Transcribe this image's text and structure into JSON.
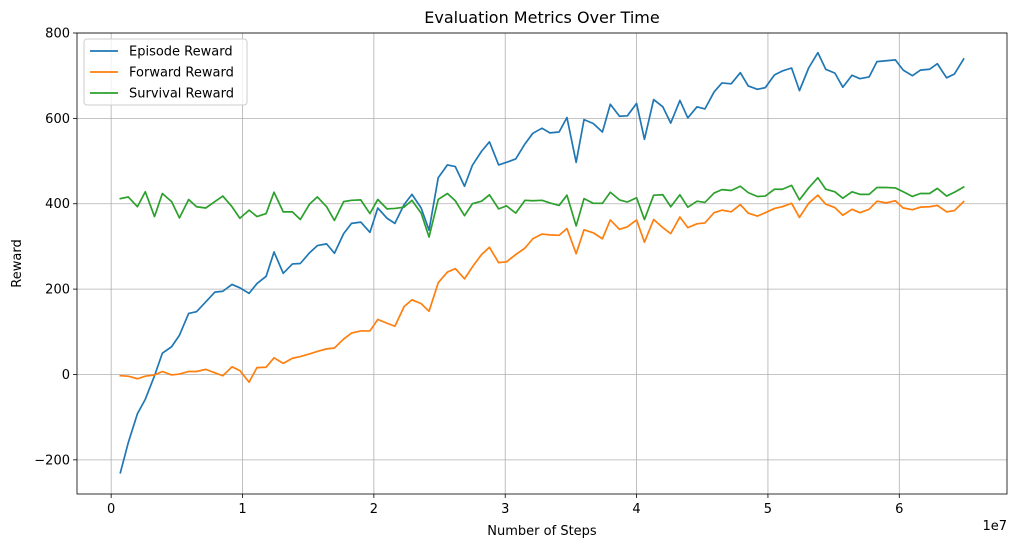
{
  "chart_data": {
    "type": "line",
    "title": "Evaluation Metrics Over Time",
    "xlabel": "Number of Steps",
    "ylabel": "Reward",
    "x_offset_label": "1e7",
    "x_scale": 10000000,
    "xlim": [
      -0.26,
      6.82
    ],
    "ylim": [
      -280,
      800
    ],
    "x_ticks": [
      0,
      1,
      2,
      3,
      4,
      5,
      6
    ],
    "y_ticks": [
      -200,
      0,
      200,
      400,
      600,
      800
    ],
    "x_tick_labels": [
      "0",
      "1",
      "2",
      "3",
      "4",
      "5",
      "6"
    ],
    "y_tick_labels": [
      "−200",
      "0",
      "200",
      "400",
      "600",
      "800"
    ],
    "grid": true,
    "legend_position": "top-left",
    "x": [
      0.07,
      0.13,
      0.2,
      0.26,
      0.33,
      0.39,
      0.46,
      0.52,
      0.59,
      0.65,
      0.72,
      0.79,
      0.85,
      0.92,
      0.98,
      1.05,
      1.11,
      1.18,
      1.24,
      1.31,
      1.38,
      1.44,
      1.51,
      1.57,
      1.64,
      1.7,
      1.77,
      1.83,
      1.9,
      1.97,
      2.03,
      2.1,
      2.16,
      2.23,
      2.29,
      2.36,
      2.42,
      2.49,
      2.56,
      2.62,
      2.69,
      2.75,
      2.82,
      2.88,
      2.95,
      3.01,
      3.08,
      3.15,
      3.21,
      3.28,
      3.34,
      3.41,
      3.47,
      3.54,
      3.6,
      3.67,
      3.74,
      3.8,
      3.87,
      3.93,
      4.0,
      4.06,
      4.13,
      4.2,
      4.26,
      4.33,
      4.39,
      4.46,
      4.52,
      4.59,
      4.65,
      4.72,
      4.79,
      4.85,
      4.92,
      4.98,
      5.05,
      5.11,
      5.18,
      5.24,
      5.31,
      5.38,
      5.44,
      5.51,
      5.57,
      5.64,
      5.7,
      5.77,
      5.83,
      5.9,
      5.97,
      6.03,
      6.1,
      6.16,
      6.23,
      6.29,
      6.36,
      6.42,
      6.49
    ],
    "series": [
      {
        "name": "Episode Reward",
        "color": "#1f77b4",
        "values": [
          -230,
          -160,
          -92,
          -58,
          -3,
          50,
          65,
          92,
          143,
          147,
          170,
          193,
          195,
          211,
          203,
          190,
          213,
          230,
          287,
          237,
          259,
          260,
          285,
          302,
          306,
          284,
          330,
          354,
          357,
          333,
          390,
          366,
          354,
          398,
          422,
          390,
          338,
          461,
          491,
          487,
          441,
          490,
          523,
          545,
          491,
          497,
          505,
          540,
          565,
          577,
          566,
          568,
          602,
          497,
          597,
          588,
          568,
          633,
          605,
          606,
          635,
          551,
          644,
          627,
          589,
          642,
          601,
          627,
          622,
          662,
          683,
          681,
          707,
          676,
          668,
          672,
          702,
          711,
          718,
          665,
          718,
          754,
          715,
          706,
          673,
          701,
          693,
          697,
          733,
          735,
          737,
          713,
          700,
          713,
          715,
          728,
          695,
          704,
          739
        ]
      },
      {
        "name": "Forward Reward",
        "color": "#ff7f0e",
        "values": [
          -3,
          -4,
          -10,
          -4,
          -1,
          7,
          -1,
          1,
          7,
          7,
          12,
          4,
          -3,
          18,
          9,
          -18,
          16,
          17,
          39,
          26,
          38,
          42,
          48,
          54,
          60,
          62,
          83,
          97,
          102,
          102,
          129,
          120,
          113,
          159,
          175,
          166,
          148,
          215,
          240,
          248,
          224,
          252,
          281,
          298,
          262,
          264,
          281,
          296,
          318,
          329,
          327,
          326,
          342,
          283,
          339,
          332,
          318,
          362,
          340,
          346,
          362,
          310,
          363,
          344,
          330,
          369,
          344,
          353,
          355,
          379,
          385,
          381,
          398,
          378,
          371,
          379,
          389,
          393,
          401,
          368,
          401,
          420,
          399,
          391,
          373,
          387,
          379,
          387,
          406,
          402,
          407,
          390,
          386,
          392,
          393,
          396,
          381,
          384,
          405
        ]
      },
      {
        "name": "Survival Reward",
        "color": "#2ca02c",
        "values": [
          412,
          416,
          393,
          428,
          370,
          424,
          405,
          367,
          410,
          393,
          390,
          405,
          418,
          393,
          366,
          385,
          370,
          377,
          427,
          381,
          381,
          363,
          399,
          416,
          393,
          361,
          405,
          408,
          409,
          377,
          410,
          388,
          389,
          392,
          408,
          378,
          322,
          410,
          424,
          407,
          372,
          400,
          406,
          421,
          388,
          395,
          378,
          408,
          407,
          408,
          402,
          396,
          420,
          348,
          412,
          401,
          401,
          427,
          409,
          404,
          414,
          363,
          420,
          421,
          393,
          421,
          392,
          406,
          403,
          425,
          433,
          431,
          441,
          426,
          417,
          418,
          434,
          434,
          443,
          409,
          437,
          461,
          434,
          428,
          413,
          428,
          422,
          422,
          438,
          438,
          437,
          428,
          417,
          424,
          424,
          436,
          418,
          427,
          439
        ]
      }
    ]
  }
}
